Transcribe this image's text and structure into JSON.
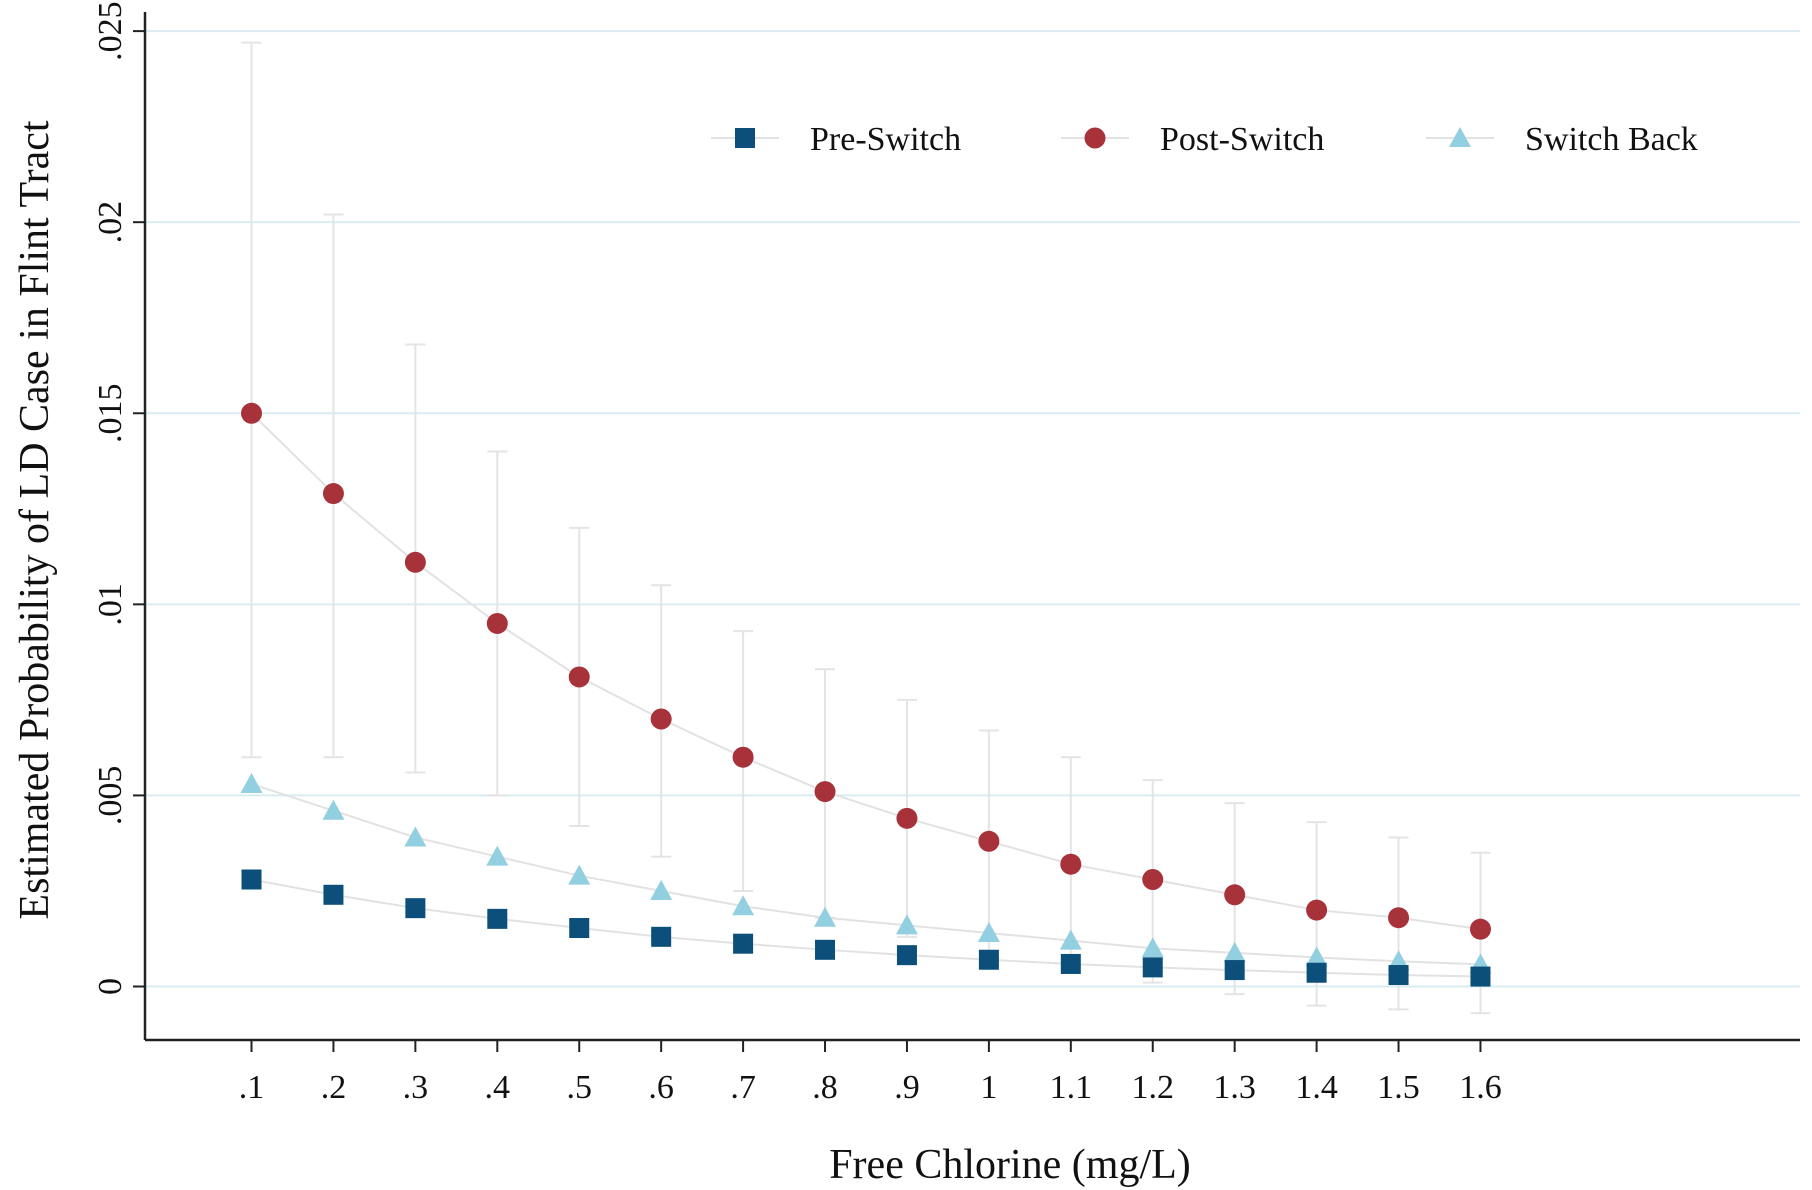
{
  "chart_data": {
    "type": "scatter",
    "title": "",
    "xlabel": "Free Chlorine (mg/L)",
    "ylabel": "Estimated Probability of LD Case in Flint Tract",
    "x": [
      0.1,
      0.2,
      0.3,
      0.4,
      0.5,
      0.6,
      0.7,
      0.8,
      0.9,
      1.0,
      1.1,
      1.2,
      1.3,
      1.4,
      1.5,
      1.6
    ],
    "x_tick_labels": [
      ".1",
      ".2",
      ".3",
      ".4",
      ".5",
      ".6",
      ".7",
      ".8",
      ".9",
      "1",
      "1.1",
      "1.2",
      "1.3",
      "1.4",
      "1.5",
      "1.6"
    ],
    "y_ticks": [
      0,
      0.005,
      0.01,
      0.015,
      0.02,
      0.025
    ],
    "y_tick_labels": [
      "0",
      ".005",
      ".01",
      ".015",
      ".02",
      ".025"
    ],
    "xlim": [
      -0.03,
      1.99
    ],
    "ylim": [
      -0.0014,
      0.0255
    ],
    "grid": "horizontal",
    "legend_position": "top-right",
    "series": [
      {
        "name": "Pre-Switch",
        "marker": "square",
        "color": "#0b4f7a",
        "y": [
          0.0028,
          0.0024,
          0.00205,
          0.00177,
          0.00153,
          0.0013,
          0.00112,
          0.00096,
          0.00082,
          0.0007,
          0.00059,
          0.0005,
          0.00043,
          0.00036,
          0.0003,
          0.00026
        ],
        "ci_low": null,
        "ci_high": null
      },
      {
        "name": "Post-Switch",
        "marker": "circle",
        "color": "#a8323a",
        "y": [
          0.015,
          0.0129,
          0.0111,
          0.0095,
          0.0081,
          0.007,
          0.006,
          0.0051,
          0.0044,
          0.0038,
          0.0032,
          0.0028,
          0.0024,
          0.002,
          0.0018,
          0.0015
        ],
        "ci_low": [
          0.006,
          0.006,
          0.0056,
          0.005,
          0.0042,
          0.0034,
          0.0025,
          0.0018,
          0.0013,
          0.0009,
          0.0005,
          0.0001,
          -0.0002,
          -0.0005,
          -0.0006,
          -0.0007
        ],
        "ci_high": [
          0.0247,
          0.0202,
          0.0168,
          0.014,
          0.012,
          0.0105,
          0.0093,
          0.0083,
          0.0075,
          0.0067,
          0.006,
          0.0054,
          0.0048,
          0.0043,
          0.0039,
          0.0035
        ]
      },
      {
        "name": "Switch Back",
        "marker": "triangle",
        "color": "#92cfe0",
        "y": [
          0.0053,
          0.0046,
          0.0039,
          0.0034,
          0.0029,
          0.0025,
          0.0021,
          0.0018,
          0.0016,
          0.0014,
          0.0012,
          0.001,
          0.00088,
          0.00076,
          0.00066,
          0.00058
        ],
        "ci_low": null,
        "ci_high": null
      }
    ]
  }
}
